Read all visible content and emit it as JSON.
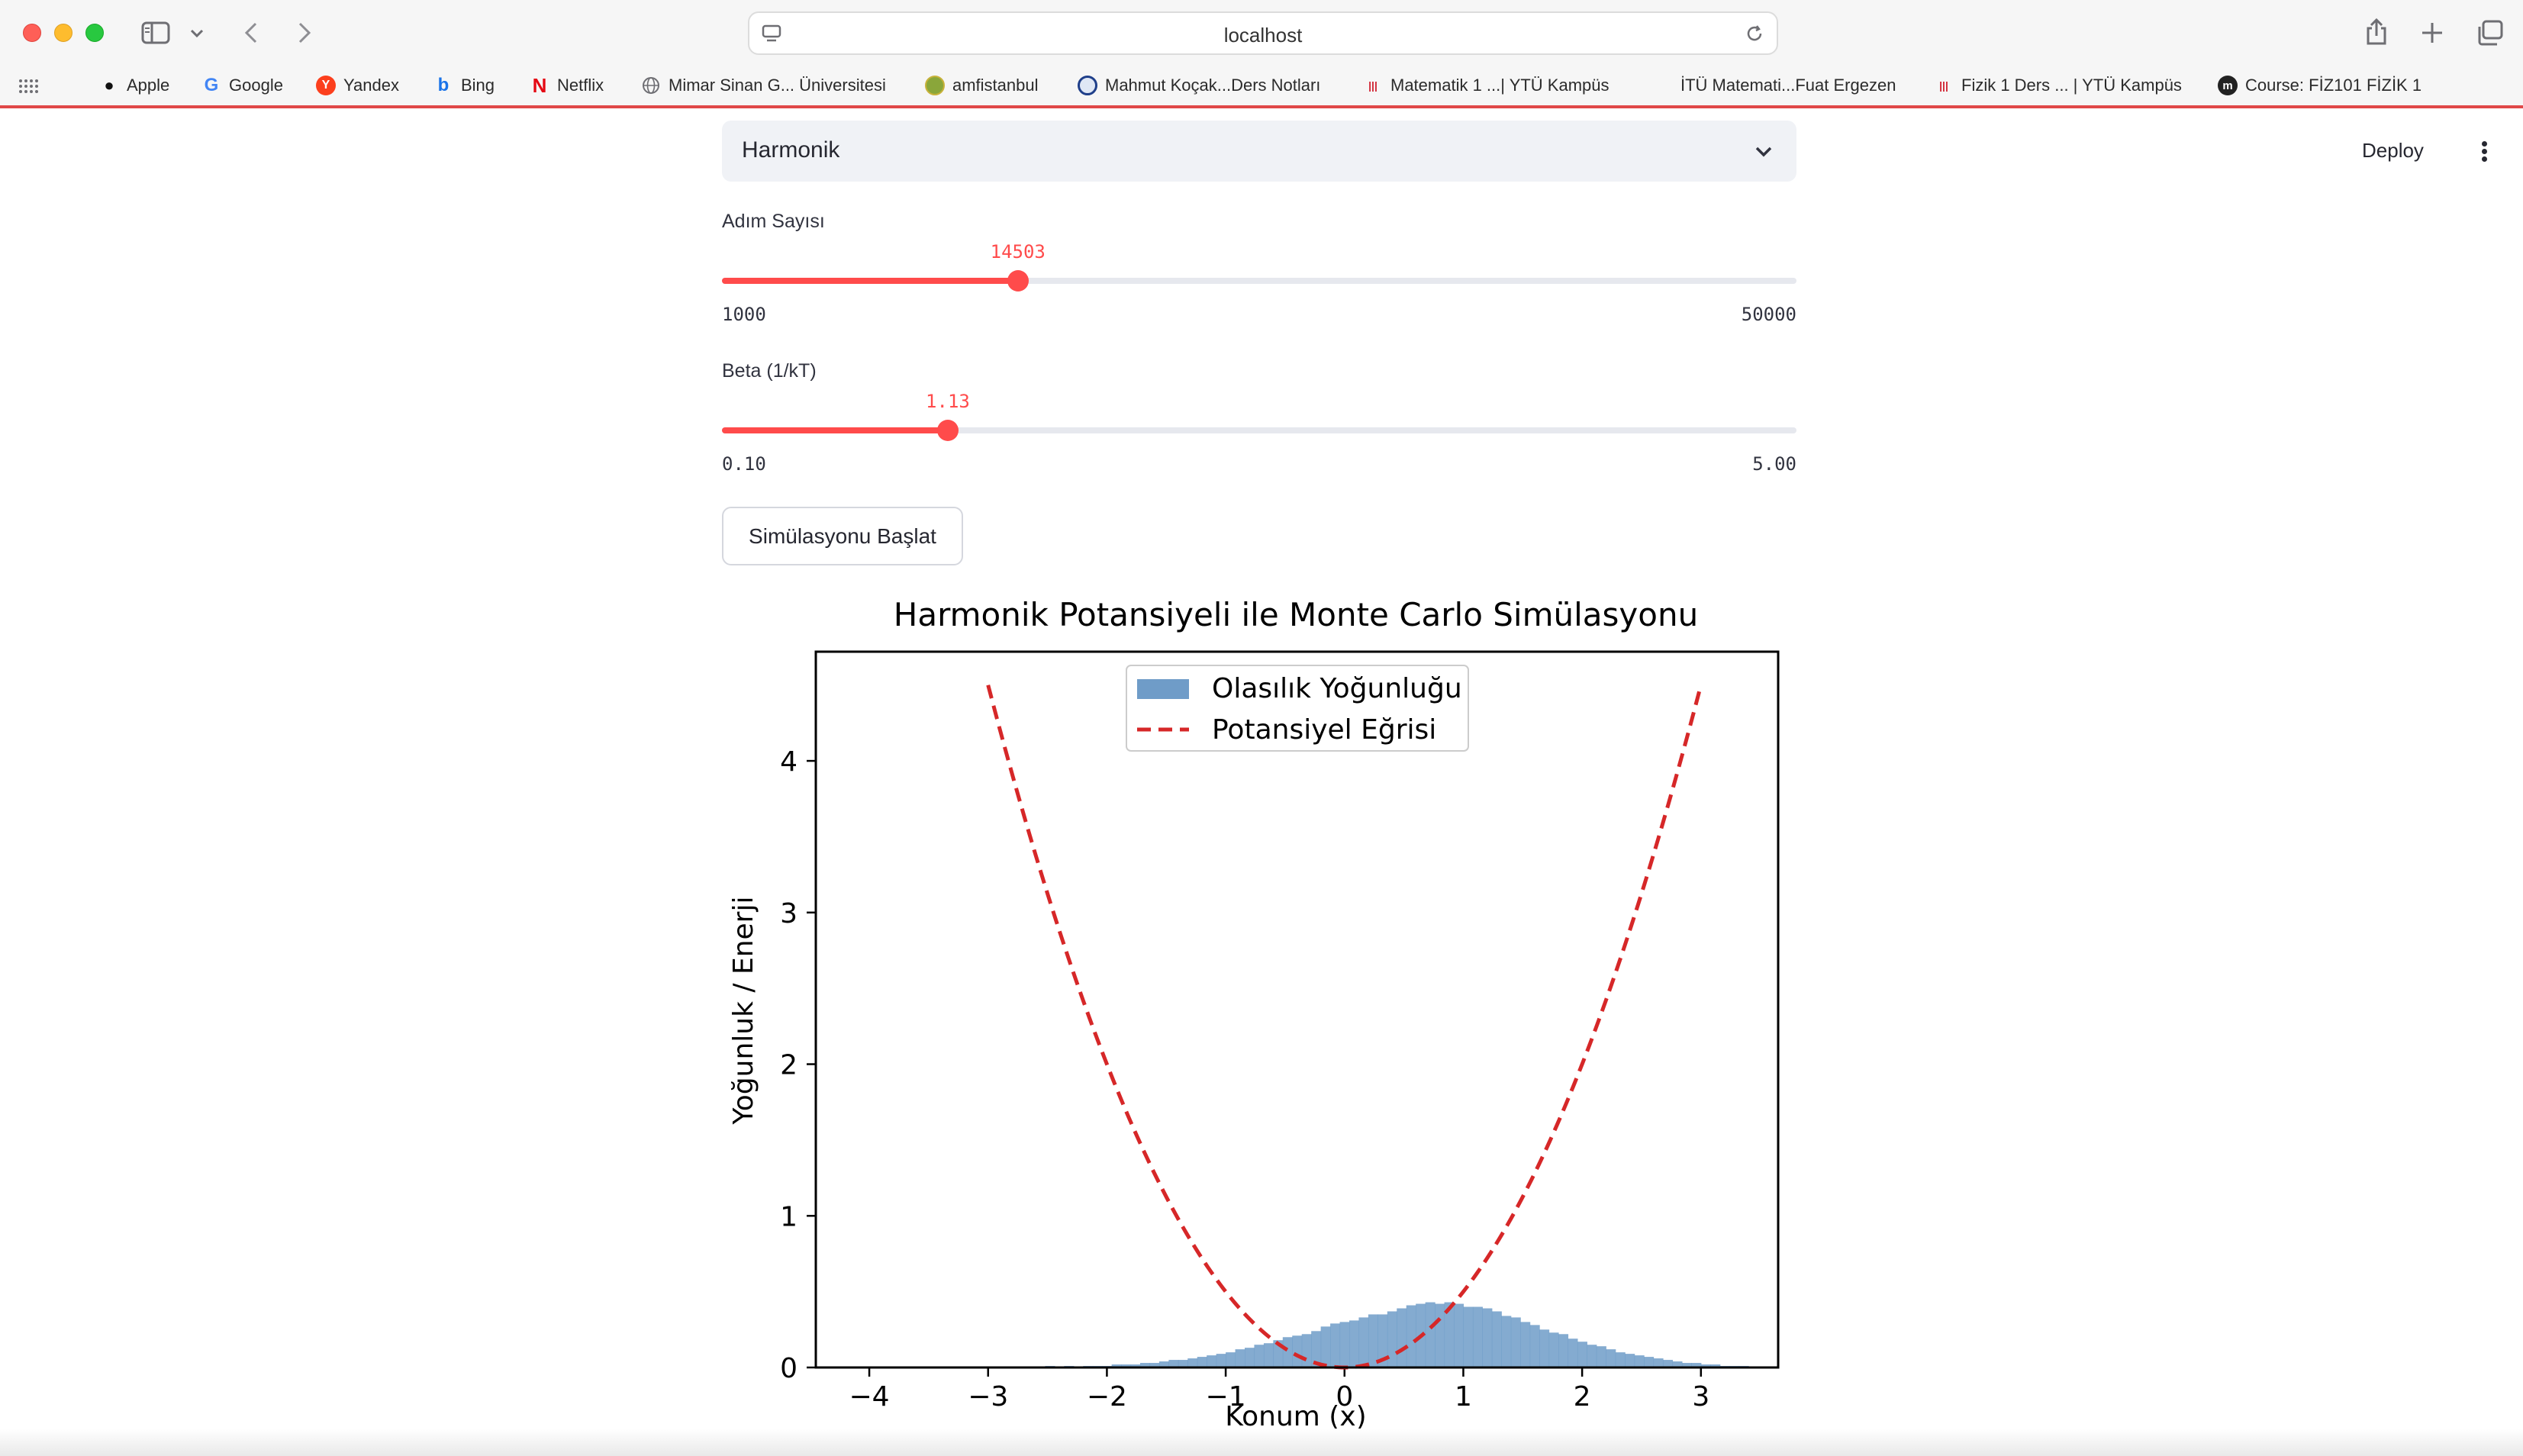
{
  "browser": {
    "url": "localhost",
    "bookmarks": [
      {
        "label": "Apple",
        "icon": "apple-icon"
      },
      {
        "label": "Google",
        "icon": "google-icon"
      },
      {
        "label": "Yandex",
        "icon": "yandex-icon"
      },
      {
        "label": "Bing",
        "icon": "bing-icon"
      },
      {
        "label": "Netflix",
        "icon": "netflix-icon"
      },
      {
        "label": "Mimar Sinan G... Üniversitesi",
        "icon": "globe-icon"
      },
      {
        "label": "amfistanbul",
        "icon": "amfistanbul-icon"
      },
      {
        "label": "Mahmut Koçak...Ders Notları",
        "icon": "mahmut-icon"
      },
      {
        "label": "Matematik 1 ...| YTÜ Kampüs",
        "icon": "ytu-icon"
      },
      {
        "label": "İTÜ Matemati...Fuat Ergezen",
        "icon": ""
      },
      {
        "label": "Fizik 1 Ders ... | YTÜ Kampüs",
        "icon": "ytu-icon"
      },
      {
        "label": "Course: FİZ101 FİZİK 1",
        "icon": "moodle-icon"
      }
    ]
  },
  "app": {
    "deploy_label": "Deploy",
    "potential_select": {
      "value": "Harmonik"
    },
    "steps_slider": {
      "label": "Adım Sayısı",
      "value": "14503",
      "min": "1000",
      "max": "50000",
      "fraction": 0.2754
    },
    "beta_slider": {
      "label": "Beta (1/kT)",
      "value": "1.13",
      "min": "0.10",
      "max": "5.00",
      "fraction": 0.2102
    },
    "start_button": "Simülasyonu Başlat"
  },
  "chart_data": {
    "type": "bar",
    "title": "Harmonik Potansiyeli ile Monte Carlo Simülasyonu",
    "xlabel": "Konum (x)",
    "ylabel": "Yoğunluk / Enerji",
    "xlim": [
      -4.45,
      3.65
    ],
    "ylim": [
      0,
      4.72
    ],
    "xticks": [
      "−4",
      "−3",
      "−2",
      "−1",
      "0",
      "1",
      "2",
      "3"
    ],
    "xtick_values": [
      -4,
      -3,
      -2,
      -1,
      0,
      1,
      2,
      3
    ],
    "yticks": [
      "0",
      "1",
      "2",
      "3",
      "4"
    ],
    "ytick_values": [
      0,
      1,
      2,
      3,
      4
    ],
    "legend": {
      "placement": "upper-center",
      "entries": [
        "Olasılık Yoğunluğu",
        "Potansiyel Eğrisi"
      ]
    },
    "histogram": {
      "name": "Olasılık Yoğunluğu",
      "color": "#6f9cc8",
      "bin_start": -3.0,
      "bin_width": 0.08,
      "values": [
        0.0,
        0.0,
        0.0,
        0.0,
        0.0,
        0.0,
        0.01,
        0.0,
        0.01,
        0.0,
        0.01,
        0.01,
        0.01,
        0.02,
        0.02,
        0.02,
        0.03,
        0.03,
        0.04,
        0.05,
        0.05,
        0.06,
        0.07,
        0.08,
        0.09,
        0.1,
        0.12,
        0.13,
        0.15,
        0.16,
        0.18,
        0.2,
        0.21,
        0.22,
        0.24,
        0.27,
        0.29,
        0.3,
        0.31,
        0.33,
        0.35,
        0.35,
        0.37,
        0.39,
        0.41,
        0.42,
        0.43,
        0.42,
        0.43,
        0.42,
        0.4,
        0.4,
        0.39,
        0.37,
        0.34,
        0.33,
        0.3,
        0.28,
        0.25,
        0.23,
        0.22,
        0.19,
        0.17,
        0.15,
        0.14,
        0.12,
        0.1,
        0.09,
        0.08,
        0.07,
        0.06,
        0.05,
        0.04,
        0.03,
        0.03,
        0.02,
        0.02,
        0.01,
        0.01,
        0.01
      ]
    },
    "potential": {
      "name": "Potansiyel Eğrisi",
      "color": "#d62728",
      "style": "dashed",
      "function": "0.5*x^2",
      "x_range": [
        -3,
        3
      ]
    }
  }
}
